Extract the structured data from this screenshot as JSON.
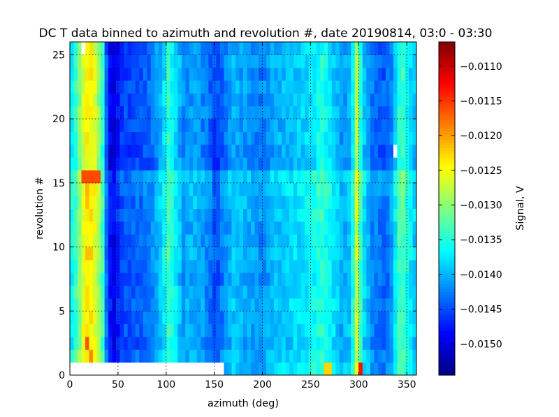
{
  "chart_data": {
    "type": "heatmap",
    "title": "DC T data binned to azimuth and revolution #, date 20190814, 03:0 - 03:30",
    "xlabel": "azimuth (deg)",
    "ylabel": "revolution #",
    "colorbar_label": "Signal, V",
    "colormap": "jet",
    "xlim": [
      0,
      360
    ],
    "ylim": [
      0,
      26
    ],
    "x_ticks": [
      0,
      50,
      100,
      150,
      200,
      250,
      300,
      350
    ],
    "y_ticks": [
      0,
      5,
      10,
      15,
      20,
      25
    ],
    "clim": [
      -0.01545,
      -0.01065
    ],
    "colorbar_ticks": [
      -0.011,
      -0.0115,
      -0.012,
      -0.0125,
      -0.013,
      -0.0135,
      -0.014,
      -0.0145,
      -0.015
    ],
    "colorbar_tick_labels": [
      "−0.0110",
      "−0.0115",
      "−0.0120",
      "−0.0125",
      "−0.0130",
      "−0.0135",
      "−0.0140",
      "−0.0145",
      "−0.0150"
    ],
    "x_tick_labels": [
      "0",
      "50",
      "100",
      "150",
      "200",
      "250",
      "300",
      "350"
    ],
    "y_tick_labels": [
      "0",
      "5",
      "10",
      "15",
      "20",
      "25"
    ],
    "grid": true,
    "azimuth_bin_deg": 4,
    "revolution_bin": 1,
    "azimuth_profile": [
      {
        "az": 0,
        "v": -0.01375
      },
      {
        "az": 8,
        "v": -0.01325
      },
      {
        "az": 14,
        "v": -0.01255
      },
      {
        "az": 20,
        "v": -0.01225
      },
      {
        "az": 28,
        "v": -0.01265
      },
      {
        "az": 34,
        "v": -0.01335
      },
      {
        "az": 38,
        "v": -0.01435
      },
      {
        "az": 44,
        "v": -0.01505
      },
      {
        "az": 52,
        "v": -0.01455
      },
      {
        "az": 60,
        "v": -0.01445
      },
      {
        "az": 72,
        "v": -0.0144
      },
      {
        "az": 85,
        "v": -0.01425
      },
      {
        "az": 96,
        "v": -0.01385
      },
      {
        "az": 102,
        "v": -0.01335
      },
      {
        "az": 108,
        "v": -0.01365
      },
      {
        "az": 118,
        "v": -0.0141
      },
      {
        "az": 130,
        "v": -0.014
      },
      {
        "az": 142,
        "v": -0.0142
      },
      {
        "az": 152,
        "v": -0.0145
      },
      {
        "az": 160,
        "v": -0.0142
      },
      {
        "az": 170,
        "v": -0.01395
      },
      {
        "az": 185,
        "v": -0.01405
      },
      {
        "az": 198,
        "v": -0.0142
      },
      {
        "az": 212,
        "v": -0.01395
      },
      {
        "az": 225,
        "v": -0.0139
      },
      {
        "az": 238,
        "v": -0.0138
      },
      {
        "az": 250,
        "v": -0.0137
      },
      {
        "az": 262,
        "v": -0.01345
      },
      {
        "az": 270,
        "v": -0.01365
      },
      {
        "az": 282,
        "v": -0.01405
      },
      {
        "az": 292,
        "v": -0.01395
      },
      {
        "az": 298,
        "v": -0.0127
      },
      {
        "az": 304,
        "v": -0.01375
      },
      {
        "az": 314,
        "v": -0.0142
      },
      {
        "az": 326,
        "v": -0.01435
      },
      {
        "az": 334,
        "v": -0.01415
      },
      {
        "az": 344,
        "v": -0.01315
      },
      {
        "az": 352,
        "v": -0.01365
      },
      {
        "az": 360,
        "v": -0.01395
      }
    ],
    "revolution_offsets": [
      {
        "rev": 0,
        "dv": 0.0001
      },
      {
        "rev": 1,
        "dv": 5e-05
      },
      {
        "rev": 2,
        "dv": -5e-05
      },
      {
        "rev": 3,
        "dv": 0.0
      },
      {
        "rev": 4,
        "dv": 0.0
      },
      {
        "rev": 5,
        "dv": 5e-05
      },
      {
        "rev": 6,
        "dv": 0.0
      },
      {
        "rev": 7,
        "dv": -5e-05
      },
      {
        "rev": 8,
        "dv": 0.0
      },
      {
        "rev": 9,
        "dv": 5e-05
      },
      {
        "rev": 10,
        "dv": 0.0
      },
      {
        "rev": 11,
        "dv": 0.0
      },
      {
        "rev": 12,
        "dv": 5e-05
      },
      {
        "rev": 13,
        "dv": 5e-05
      },
      {
        "rev": 14,
        "dv": 0.0001
      },
      {
        "rev": 15,
        "dv": 0.00015
      },
      {
        "rev": 16,
        "dv": -0.00015
      },
      {
        "rev": 17,
        "dv": -0.00015
      },
      {
        "rev": 18,
        "dv": -0.0001
      },
      {
        "rev": 19,
        "dv": -0.0001
      },
      {
        "rev": 20,
        "dv": -5e-05
      },
      {
        "rev": 21,
        "dv": -0.0001
      },
      {
        "rev": 22,
        "dv": -5e-05
      },
      {
        "rev": 23,
        "dv": -0.0001
      },
      {
        "rev": 24,
        "dv": -5e-05
      },
      {
        "rev": 25,
        "dv": -0.0001
      }
    ],
    "hot_cells": [
      {
        "rev": 15,
        "az_from": 12,
        "az_to": 32,
        "v": -0.0116
      },
      {
        "rev": 0,
        "az_from": 298,
        "az_to": 302,
        "v": -0.0113
      },
      {
        "rev": 0,
        "az_from": 264,
        "az_to": 270,
        "v": -0.01225
      },
      {
        "rev": 2,
        "az_from": 16,
        "az_to": 20,
        "v": -0.01165
      },
      {
        "rev": 1,
        "az_from": 18,
        "az_to": 22,
        "v": -0.0119
      }
    ],
    "missing_cells": [
      {
        "rev_from": 0,
        "rev_to": 1,
        "az_from": 0,
        "az_to": 160
      },
      {
        "rev_from": 25,
        "rev_to": 26,
        "az_from": 12,
        "az_to": 16
      },
      {
        "rev_from": 17,
        "rev_to": 18,
        "az_from": 336,
        "az_to": 340
      }
    ]
  }
}
